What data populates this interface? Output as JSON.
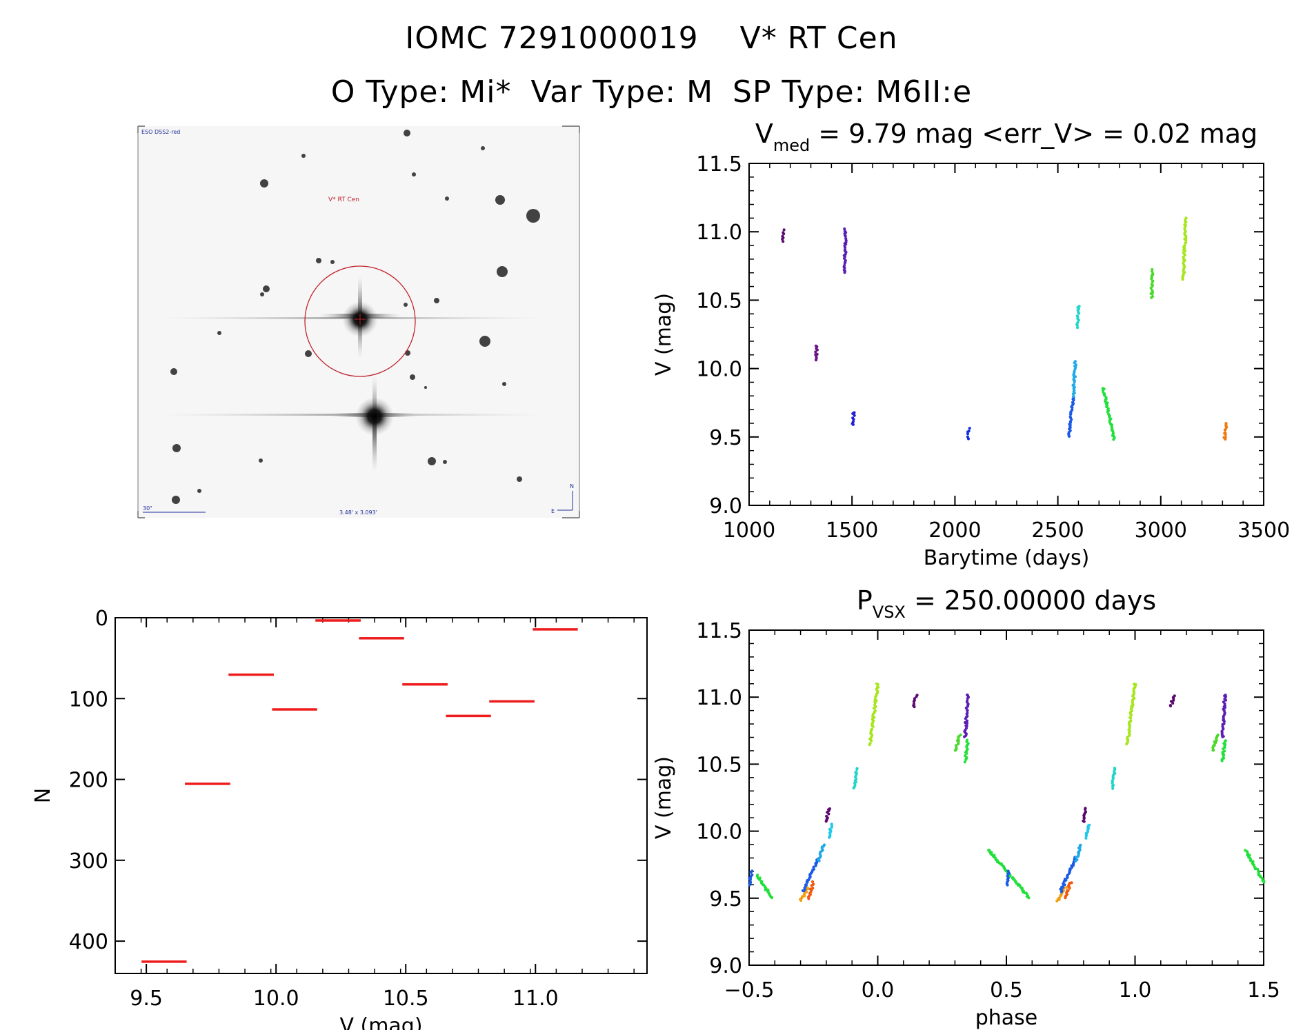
{
  "header": {
    "object_id": "IOMC 7291000019",
    "star_name": "V* RT Cen",
    "o_type": "O Type: Mi*",
    "var_type": "Var Type: M",
    "sp_type": "SP Type: M6II:e"
  },
  "finder": {
    "survey_label": "ESO DSS2-red",
    "target_label": "V* RT Cen",
    "scale_label": "30\"",
    "size_label": "3.48' x 3.093'",
    "north_label": "N",
    "east_label": "E",
    "colors": {
      "circle": "#c0202a",
      "annotation": "#1f2f9a",
      "target_label": "#c0202a"
    }
  },
  "chart_data": [
    {
      "id": "light_curve",
      "type": "scatter",
      "title_main": "V",
      "title_sub": "med",
      "title_rest": " = 9.79 mag <err_V> = 0.02 mag",
      "xlabel": "Barytime (days)",
      "ylabel": "V (mag)",
      "xlim": [
        1000,
        3500
      ],
      "ylim": [
        11.5,
        9.0
      ],
      "xticks": [
        1000,
        1500,
        2000,
        2500,
        3000,
        3500
      ],
      "xtick_labels": [
        "1000",
        "1500",
        "2000",
        "2500",
        "3000",
        "3500"
      ],
      "yticks": [
        9.0,
        9.5,
        10.0,
        10.5,
        11.0,
        11.5
      ],
      "ytick_labels": [
        "9.0",
        "9.5",
        "10.0",
        "10.5",
        "11.0",
        "11.5"
      ],
      "segments": [
        {
          "t0": 1165,
          "t1": 1168,
          "v0": 10.93,
          "v1": 11.01,
          "color": "#5a0a6e"
        },
        {
          "t0": 1325,
          "t1": 1328,
          "v0": 10.06,
          "v1": 10.17,
          "color": "#6b1486"
        },
        {
          "t0": 1465,
          "t1": 1468,
          "v0": 10.7,
          "v1": 11.02,
          "color": "#5a1eb4"
        },
        {
          "t0": 1505,
          "t1": 1509,
          "v0": 9.59,
          "v1": 9.68,
          "color": "#2020d0"
        },
        {
          "t0": 2064,
          "t1": 2068,
          "v0": 9.49,
          "v1": 9.56,
          "color": "#1030e0"
        },
        {
          "t0": 2555,
          "t1": 2575,
          "v0": 9.5,
          "v1": 9.8,
          "color": "#1a5ae6"
        },
        {
          "t0": 2575,
          "t1": 2585,
          "v0": 9.8,
          "v1": 10.05,
          "color": "#1fa9e8"
        },
        {
          "t0": 2596,
          "t1": 2600,
          "v0": 10.3,
          "v1": 10.46,
          "color": "#20d6c8"
        },
        {
          "t0": 2720,
          "t1": 2775,
          "v0": 9.86,
          "v1": 9.48,
          "color": "#22e03a"
        },
        {
          "t0": 2955,
          "t1": 2962,
          "v0": 10.52,
          "v1": 10.72,
          "color": "#4ada2a"
        },
        {
          "t0": 3110,
          "t1": 3122,
          "v0": 10.65,
          "v1": 11.1,
          "color": "#a6e61e"
        },
        {
          "t0": 3310,
          "t1": 3322,
          "v0": 9.48,
          "v1": 9.6,
          "color": "#f07a10"
        }
      ]
    },
    {
      "id": "phased",
      "type": "scatter",
      "title_main": "P",
      "title_sub": "VSX",
      "title_rest": " = 250.00000 days",
      "xlabel": "phase",
      "ylabel": "V (mag)",
      "xlim": [
        -0.5,
        1.5
      ],
      "ylim": [
        11.5,
        9.0
      ],
      "xticks": [
        -0.5,
        0.0,
        0.5,
        1.0,
        1.5
      ],
      "xtick_labels": [
        "−0.5",
        "0.0",
        "0.5",
        "1.0",
        "1.5"
      ],
      "yticks": [
        9.0,
        9.5,
        10.0,
        10.5,
        11.0,
        11.5
      ],
      "ytick_labels": [
        "9.0",
        "9.5",
        "10.0",
        "10.5",
        "11.0",
        "11.5"
      ],
      "segments": [
        {
          "p0": -0.5,
          "p1": -0.49,
          "v0": 9.6,
          "v1": 9.7,
          "color": "#1a5ae6"
        },
        {
          "p0": -0.47,
          "p1": -0.41,
          "v0": 9.67,
          "v1": 9.5,
          "color": "#22e03a"
        },
        {
          "p0": -0.3,
          "p1": -0.27,
          "v0": 9.48,
          "v1": 9.58,
          "color": "#f0a010"
        },
        {
          "p0": -0.27,
          "p1": -0.25,
          "v0": 9.5,
          "v1": 9.62,
          "color": "#f05a10"
        },
        {
          "p0": -0.29,
          "p1": -0.23,
          "v0": 9.55,
          "v1": 9.8,
          "color": "#1a5ae6"
        },
        {
          "p0": -0.23,
          "p1": -0.21,
          "v0": 9.78,
          "v1": 9.9,
          "color": "#1fa9e8"
        },
        {
          "p0": -0.19,
          "p1": -0.18,
          "v0": 9.95,
          "v1": 10.05,
          "color": "#1fc9e8"
        },
        {
          "p0": -0.2,
          "p1": -0.19,
          "v0": 10.07,
          "v1": 10.17,
          "color": "#5a0a6e"
        },
        {
          "p0": -0.09,
          "p1": -0.08,
          "v0": 10.32,
          "v1": 10.47,
          "color": "#20d6c8"
        },
        {
          "p0": -0.03,
          "p1": 0.0,
          "v0": 10.65,
          "v1": 11.1,
          "color": "#a6e61e"
        },
        {
          "p0": 0.14,
          "p1": 0.15,
          "v0": 10.93,
          "v1": 11.01,
          "color": "#5a0a6e"
        },
        {
          "p0": 0.3,
          "p1": 0.32,
          "v0": 10.6,
          "v1": 10.72,
          "color": "#4ada2a"
        },
        {
          "p0": 0.34,
          "p1": 0.35,
          "v0": 10.52,
          "v1": 10.68,
          "color": "#22e03a"
        },
        {
          "p0": 0.34,
          "p1": 0.35,
          "v0": 10.7,
          "v1": 11.02,
          "color": "#5a1eb4"
        },
        {
          "p0": 0.43,
          "p1": 0.59,
          "v0": 9.86,
          "v1": 9.5,
          "color": "#22e03a"
        },
        {
          "p0": 0.5,
          "p1": 0.51,
          "v0": 9.6,
          "v1": 9.7,
          "color": "#1a5ae6"
        },
        {
          "p0": 0.7,
          "p1": 0.73,
          "v0": 9.48,
          "v1": 9.58,
          "color": "#f0a010"
        },
        {
          "p0": 0.73,
          "p1": 0.75,
          "v0": 9.5,
          "v1": 9.62,
          "color": "#f05a10"
        },
        {
          "p0": 0.71,
          "p1": 0.77,
          "v0": 9.55,
          "v1": 9.8,
          "color": "#1a5ae6"
        },
        {
          "p0": 0.77,
          "p1": 0.79,
          "v0": 9.78,
          "v1": 9.9,
          "color": "#1fa9e8"
        },
        {
          "p0": 0.81,
          "p1": 0.82,
          "v0": 9.95,
          "v1": 10.05,
          "color": "#1fc9e8"
        },
        {
          "p0": 0.8,
          "p1": 0.81,
          "v0": 10.07,
          "v1": 10.17,
          "color": "#5a0a6e"
        },
        {
          "p0": 0.91,
          "p1": 0.92,
          "v0": 10.32,
          "v1": 10.47,
          "color": "#20d6c8"
        },
        {
          "p0": 0.97,
          "p1": 1.0,
          "v0": 10.65,
          "v1": 11.1,
          "color": "#a6e61e"
        },
        {
          "p0": 1.14,
          "p1": 1.15,
          "v0": 10.93,
          "v1": 11.01,
          "color": "#5a0a6e"
        },
        {
          "p0": 1.3,
          "p1": 1.32,
          "v0": 10.6,
          "v1": 10.72,
          "color": "#4ada2a"
        },
        {
          "p0": 1.34,
          "p1": 1.35,
          "v0": 10.52,
          "v1": 10.68,
          "color": "#22e03a"
        },
        {
          "p0": 1.34,
          "p1": 1.35,
          "v0": 10.7,
          "v1": 11.02,
          "color": "#5a1eb4"
        },
        {
          "p0": 1.43,
          "p1": 1.5,
          "v0": 9.86,
          "v1": 9.62,
          "color": "#22e03a"
        }
      ]
    },
    {
      "id": "histogram",
      "type": "bar",
      "xlabel": "V (mag)",
      "ylabel": "N",
      "xlim": [
        9.38,
        11.43
      ],
      "ylim": [
        0,
        440
      ],
      "xticks": [
        9.5,
        10.0,
        10.5,
        11.0
      ],
      "xtick_labels": [
        "9.5",
        "10.0",
        "10.5",
        "11.0"
      ],
      "yticks": [
        0,
        100,
        200,
        300,
        400
      ],
      "ytick_labels": [
        "0",
        "100",
        "200",
        "300",
        "400"
      ],
      "bin_edges": [
        9.485,
        9.652,
        9.82,
        9.988,
        10.155,
        10.323,
        10.49,
        10.658,
        10.825,
        10.993,
        11.16
      ],
      "values": [
        425,
        205,
        70,
        113,
        3,
        25,
        82,
        121,
        103,
        14
      ],
      "bar_color": "#ee1c1c"
    }
  ]
}
